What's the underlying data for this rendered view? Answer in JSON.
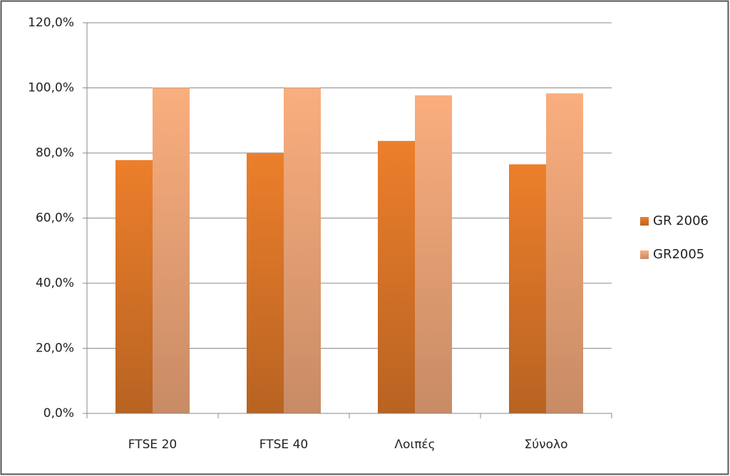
{
  "chart_data": {
    "type": "bar",
    "categories": [
      "FTSE 20",
      "FTSE 40",
      "Λοιπές",
      "Σύνολο"
    ],
    "series": [
      {
        "name": "GR 2006",
        "color": "#ec7f2b",
        "values": [
          77.8,
          80.0,
          83.7,
          76.5
        ]
      },
      {
        "name": "GR2005",
        "color": "#faae7e",
        "values": [
          100.0,
          100.0,
          97.7,
          98.3
        ]
      }
    ],
    "ylim": [
      0,
      120
    ],
    "yticks": [
      {
        "value": 0,
        "label": "0,0%"
      },
      {
        "value": 20,
        "label": "20,0%"
      },
      {
        "value": 40,
        "label": "40,0%"
      },
      {
        "value": 60,
        "label": "60,0%"
      },
      {
        "value": 80,
        "label": "80,0%"
      },
      {
        "value": 100,
        "label": "100,0%"
      },
      {
        "value": 120,
        "label": "120,0%"
      }
    ],
    "grid": true,
    "legend": "right"
  }
}
